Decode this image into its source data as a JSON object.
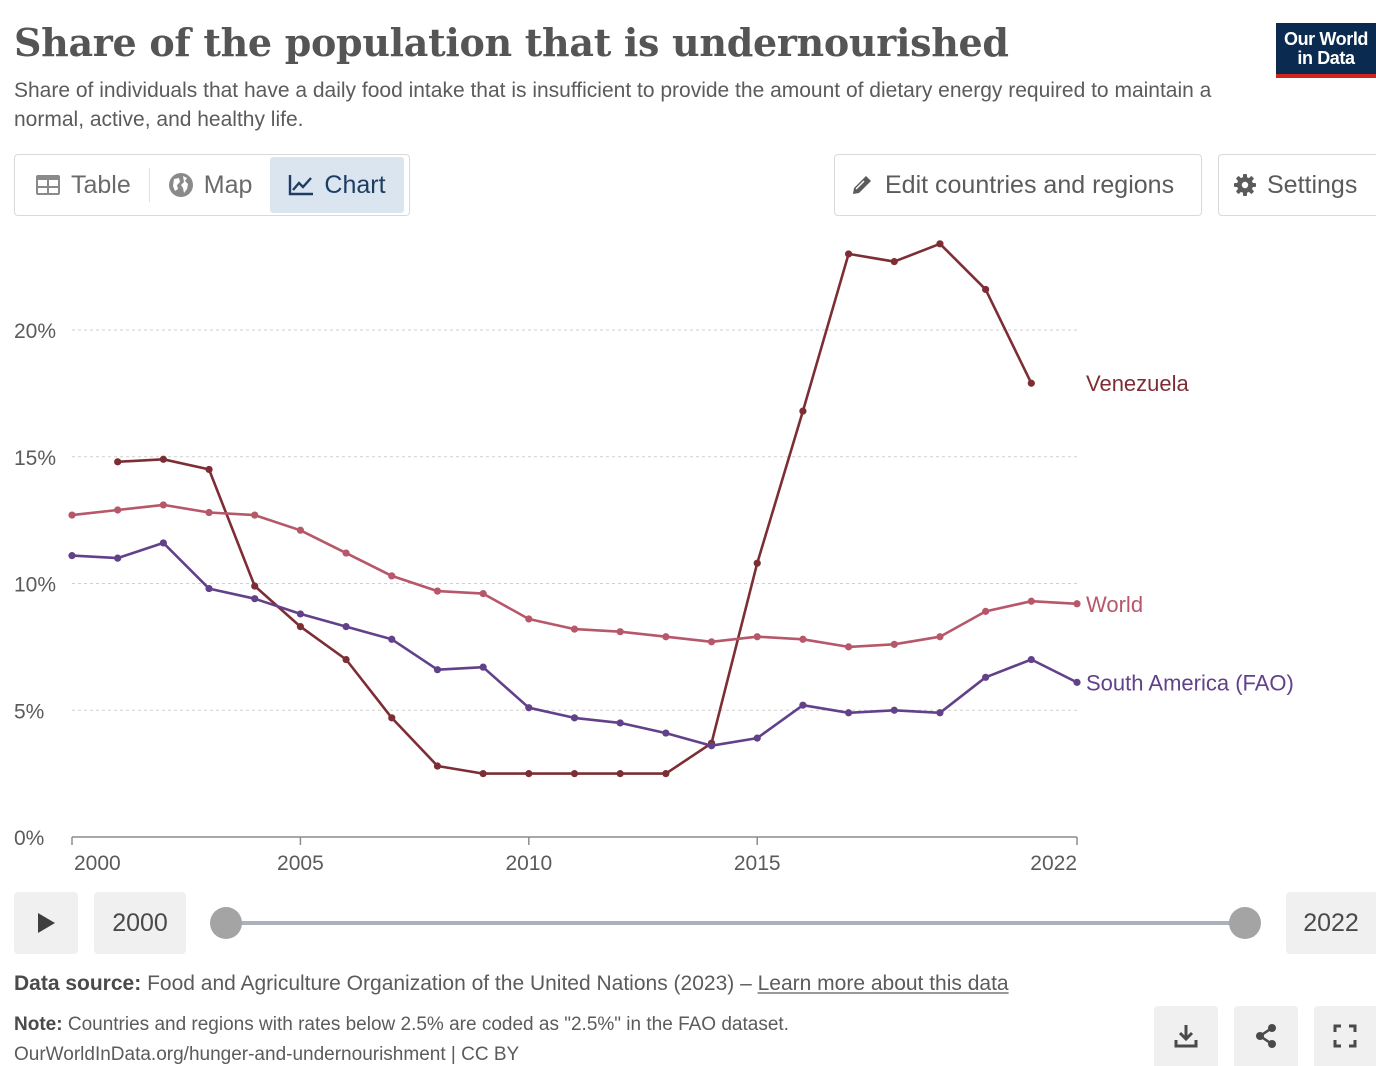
{
  "header": {
    "title": "Share of the population that is undernourished",
    "subtitle": "Share of individuals that have a daily food intake that is insufficient to provide the amount of dietary energy required to maintain a normal, active, and healthy life.",
    "logo_line1": "Our World",
    "logo_line2": "in Data"
  },
  "tabs": [
    {
      "label": "Table",
      "icon": "table-icon"
    },
    {
      "label": "Map",
      "icon": "globe-icon"
    },
    {
      "label": "Chart",
      "icon": "line-chart-icon",
      "active": true
    }
  ],
  "toolbar": {
    "edit_label": "Edit countries and regions",
    "settings_label": "Settings"
  },
  "timeline": {
    "start_label": "2000",
    "end_label": "2022",
    "start_year": 2000,
    "end_year": 2022
  },
  "footer": {
    "source_label": "Data source:",
    "source_text": "Food and Agriculture Organization of the United Nations (2023) –",
    "source_link": "Learn more about this data",
    "note_label": "Note:",
    "note_text": "Countries and regions with rates below 2.5% are coded as \"2.5%\" in the FAO dataset.",
    "url": "OurWorldInData.org/hunger-and-undernourishment | CC BY"
  },
  "colors": {
    "venezuela": "#7d2e35",
    "world": "#b6576a",
    "south_america": "#62418a",
    "grid": "#cfcfcf",
    "axis_text": "#5b5b5b"
  },
  "chart_data": {
    "type": "line",
    "title": "Share of the population that is undernourished",
    "xlabel": "",
    "ylabel": "",
    "xlim": [
      2000,
      2022
    ],
    "ylim": [
      0,
      24
    ],
    "x_ticks": [
      {
        "value": 2000,
        "label": "2000"
      },
      {
        "value": 2005,
        "label": "2005"
      },
      {
        "value": 2010,
        "label": "2010"
      },
      {
        "value": 2015,
        "label": "2015"
      },
      {
        "value": 2022,
        "label": "2022"
      }
    ],
    "y_ticks": [
      {
        "value": 0,
        "label": "0%"
      },
      {
        "value": 5,
        "label": "5%"
      },
      {
        "value": 10,
        "label": "10%"
      },
      {
        "value": 15,
        "label": "15%"
      },
      {
        "value": 20,
        "label": "20%"
      }
    ],
    "grid": true,
    "legend": "inline labels at line ends (right)",
    "series": [
      {
        "name": "Venezuela",
        "color_key": "venezuela",
        "x": [
          2001,
          2002,
          2003,
          2004,
          2005,
          2006,
          2007,
          2008,
          2009,
          2010,
          2011,
          2012,
          2013,
          2014,
          2015,
          2016,
          2017,
          2018,
          2019,
          2020,
          2021
        ],
        "values": [
          14.8,
          14.9,
          14.5,
          9.9,
          8.3,
          7.0,
          4.7,
          2.8,
          2.5,
          2.5,
          2.5,
          2.5,
          2.5,
          3.7,
          10.8,
          16.8,
          23.0,
          22.7,
          23.4,
          21.6,
          17.9
        ]
      },
      {
        "name": "World",
        "color_key": "world",
        "x": [
          2000,
          2001,
          2002,
          2003,
          2004,
          2005,
          2006,
          2007,
          2008,
          2009,
          2010,
          2011,
          2012,
          2013,
          2014,
          2015,
          2016,
          2017,
          2018,
          2019,
          2020,
          2021,
          2022
        ],
        "values": [
          12.7,
          12.9,
          13.1,
          12.8,
          12.7,
          12.1,
          11.2,
          10.3,
          9.7,
          9.6,
          8.6,
          8.2,
          8.1,
          7.9,
          7.7,
          7.9,
          7.8,
          7.5,
          7.6,
          7.9,
          8.9,
          9.3,
          9.2
        ]
      },
      {
        "name": "South America (FAO)",
        "color_key": "south_america",
        "x": [
          2000,
          2001,
          2002,
          2003,
          2004,
          2005,
          2006,
          2007,
          2008,
          2009,
          2010,
          2011,
          2012,
          2013,
          2014,
          2015,
          2016,
          2017,
          2018,
          2019,
          2020,
          2021,
          2022
        ],
        "values": [
          11.1,
          11.0,
          11.6,
          9.8,
          9.4,
          8.8,
          8.3,
          7.8,
          6.6,
          6.7,
          5.1,
          4.7,
          4.5,
          4.1,
          3.6,
          3.9,
          5.2,
          4.9,
          5.0,
          4.9,
          6.3,
          7.0,
          6.1
        ]
      }
    ]
  }
}
